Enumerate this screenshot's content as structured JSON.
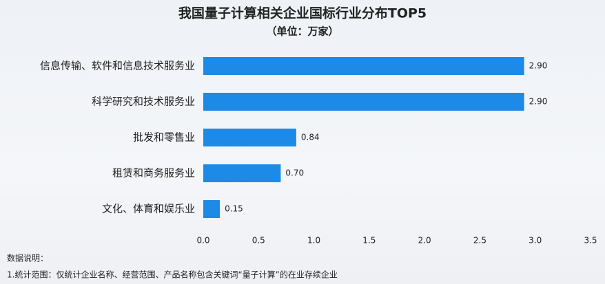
{
  "chart_data": {
    "type": "bar",
    "orientation": "horizontal",
    "title": "我国量子计算相关企业国标行业分布TOP5",
    "subtitle": "（单位：万家）",
    "categories": [
      "信息传输、软件和信息技术服务业",
      "科学研究和技术服务业",
      "批发和零售业",
      "租赁和商务服务业",
      "文化、体育和娱乐业"
    ],
    "values": [
      2.9,
      2.9,
      0.84,
      0.7,
      0.15
    ],
    "value_labels": [
      "2.90",
      "2.90",
      "0.84",
      "0.70",
      "0.15"
    ],
    "color": "#1e8ae8",
    "xlim": [
      0,
      3.5
    ],
    "xticks": [
      {
        "value": 0,
        "label": "0.0"
      },
      0.5,
      {
        "value": 1,
        "label": "1.0"
      },
      1.5,
      {
        "value": 2,
        "label": "2.0"
      },
      2.5,
      {
        "value": 3,
        "label": "3.0"
      },
      3.5
    ],
    "grid": false,
    "notes": [
      "数据说明：",
      "1.统计范围：仅统计企业名称、经营范围、产品名称包含关键词“量子计算”的在业存续企业"
    ]
  }
}
